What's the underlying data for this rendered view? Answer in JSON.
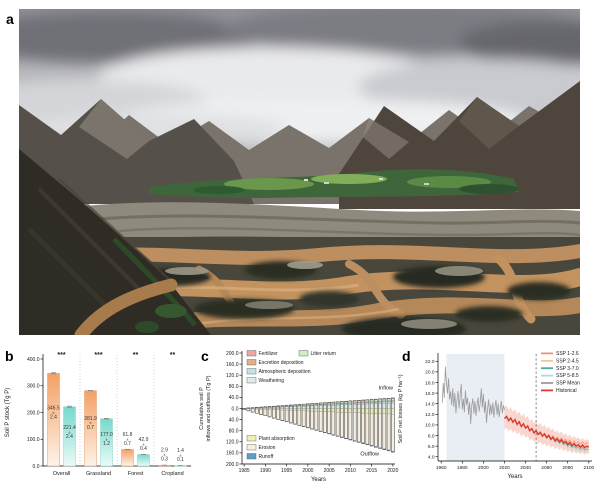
{
  "panels": {
    "a": "a",
    "b": "b",
    "c": "c",
    "d": "d"
  },
  "photo": {
    "description_icon": "braided-river-valley-photo"
  },
  "chart_data": [
    {
      "id": "b",
      "type": "bar",
      "ylabel": "Soil P stock (Tg P)",
      "ylim": [
        0,
        400
      ],
      "yticks": [
        0,
        100,
        200,
        300,
        400
      ],
      "categories": [
        "Overall",
        "Grassland",
        "Forest",
        "Cropland"
      ],
      "significance": [
        "***",
        "***",
        "**",
        "**"
      ],
      "pm": "±",
      "series": [
        {
          "name": "orange",
          "color_top": "#F4A064",
          "color_bottom": "#FEF3E8",
          "edge": "#DFA070",
          "values": [
            346.5,
            281.9,
            61.8,
            2.9
          ],
          "errors": [
            2.4,
            0.7,
            0.7,
            0.3
          ]
        },
        {
          "name": "teal",
          "color_top": "#76D8CA",
          "color_bottom": "#ECFBF8",
          "edge": "#8FD4C8",
          "values": [
            221.4,
            177.0,
            42.9,
            1.4
          ],
          "errors": [
            2.4,
            1.2,
            0.4,
            0.1
          ]
        }
      ]
    },
    {
      "id": "c",
      "type": "stacked-bar-cumulative",
      "ylabel_line1": "Cumulative soil P",
      "ylabel_line2": "inflows and outflows (Tg P)",
      "xlabel": "Years",
      "year_start": 1985,
      "year_end": 2020,
      "xticks": [
        1985,
        1990,
        1995,
        2000,
        2005,
        2010,
        2015,
        2020
      ],
      "yticks_signed": [
        200,
        160,
        120,
        80,
        40,
        0,
        -40,
        -80,
        -120,
        -160,
        -200
      ],
      "inflow_label": "Inflow",
      "outflow_label": "Outflow",
      "inflow_total_2020": 38,
      "outflow_total_2020": 157,
      "inflow_segments": [
        {
          "label": "Weathering",
          "color": "#DDEBE9",
          "frac": 0.52
        },
        {
          "label": "Atmospheric deposition",
          "color": "#BFE3E6",
          "frac": 0.16
        },
        {
          "label": "Excretion deposition",
          "color": "#E3B187",
          "frac": 0.09
        },
        {
          "label": "Litter return",
          "color": "#CDEDC5",
          "frac": 0.17
        },
        {
          "label": "Fertilizer",
          "color": "#F2A5A0",
          "frac": 0.06
        }
      ],
      "outflow_segments": [
        {
          "label": "Plant absorption",
          "color": "#EDEFB4",
          "frac": 0.13
        },
        {
          "label": "Erosion",
          "color": "#F6EEDF",
          "frac": 0.85
        },
        {
          "label": "Runoff",
          "color": "#5D9DC8",
          "frac": 0.02
        }
      ]
    },
    {
      "id": "d",
      "type": "line",
      "ylabel": "Soil P net losses (kg P ha⁻¹)",
      "xlabel": "Years",
      "yticks": [
        4,
        6,
        8,
        10,
        12,
        14,
        16,
        18,
        20,
        22
      ],
      "xticks": [
        1960,
        1980,
        2000,
        2020,
        2040,
        2060,
        2080,
        2100
      ],
      "shaded_region": [
        1965,
        2020
      ],
      "shade_color": "#E9EEF5",
      "dashed_line_x": 2050,
      "band_color": "rgba(242,150,126,0.38)",
      "band_halfwidth_start": 2.1,
      "band_halfwidth_end": 1.3,
      "ssp_scenarios": [
        {
          "label": "SSP 1-2.6",
          "color": "#F0907A",
          "end_offset": 0.7
        },
        {
          "label": "SSP 2-4.5",
          "color": "#F6C48E",
          "end_offset": 0.2
        },
        {
          "label": "SSP 3-7.0",
          "color": "#52A89E",
          "end_offset": -0.5
        },
        {
          "label": "SSP 5-8.5",
          "color": "#AEDBD6",
          "end_offset": -0.9
        }
      ],
      "mean_entry": {
        "label": "SSP Mean",
        "color": "#9C9C9C"
      },
      "historical_entry": {
        "label": "Historical",
        "color": "#D93A2B"
      },
      "gray_series": [
        [
          1961,
          14.2
        ],
        [
          1962,
          17.9
        ],
        [
          1963,
          15.1
        ],
        [
          1964,
          21.0
        ],
        [
          1965,
          17.7
        ],
        [
          1966,
          15.9
        ],
        [
          1967,
          18.8
        ],
        [
          1968,
          14.8
        ],
        [
          1969,
          16.3
        ],
        [
          1970,
          13.7
        ],
        [
          1971,
          16.9
        ],
        [
          1972,
          13.4
        ],
        [
          1973,
          16.0
        ],
        [
          1974,
          12.2
        ],
        [
          1975,
          14.7
        ],
        [
          1976,
          16.4
        ],
        [
          1977,
          13.1
        ],
        [
          1978,
          15.5
        ],
        [
          1979,
          17.7
        ],
        [
          1980,
          12.9
        ],
        [
          1981,
          14.9
        ],
        [
          1982,
          12.4
        ],
        [
          1983,
          16.5
        ],
        [
          1984,
          13.8
        ],
        [
          1985,
          15.1
        ],
        [
          1986,
          11.9
        ],
        [
          1987,
          14.3
        ],
        [
          1988,
          10.2
        ],
        [
          1989,
          13.6
        ],
        [
          1990,
          15.0
        ],
        [
          1991,
          12.1
        ],
        [
          1992,
          14.5
        ],
        [
          1993,
          11.7
        ],
        [
          1994,
          13.7
        ],
        [
          1995,
          15.2
        ],
        [
          1996,
          12.5
        ],
        [
          1997,
          14.1
        ],
        [
          1998,
          16.9
        ],
        [
          1999,
          13.3
        ],
        [
          2000,
          15.9
        ],
        [
          2001,
          12.3
        ],
        [
          2002,
          14.4
        ],
        [
          2003,
          10.4
        ],
        [
          2004,
          13.0
        ],
        [
          2005,
          14.8
        ],
        [
          2006,
          11.8
        ],
        [
          2007,
          13.9
        ],
        [
          2008,
          12.0
        ],
        [
          2009,
          14.2
        ],
        [
          2010,
          11.4
        ],
        [
          2011,
          13.4
        ],
        [
          2012,
          14.7
        ],
        [
          2013,
          11.9
        ],
        [
          2014,
          14.0
        ],
        [
          2015,
          11.5
        ],
        [
          2016,
          13.2
        ],
        [
          2017,
          14.5
        ],
        [
          2018,
          12.2
        ],
        [
          2019,
          13.7
        ],
        [
          2020,
          12.8
        ]
      ],
      "red_series": [
        [
          2020,
          11.2
        ],
        [
          2022,
          11.6
        ],
        [
          2024,
          10.8
        ],
        [
          2026,
          11.3
        ],
        [
          2028,
          10.5
        ],
        [
          2030,
          11.0
        ],
        [
          2032,
          10.1
        ],
        [
          2034,
          10.6
        ],
        [
          2036,
          9.7
        ],
        [
          2038,
          10.2
        ],
        [
          2040,
          9.4
        ],
        [
          2042,
          9.8
        ],
        [
          2044,
          8.9
        ],
        [
          2046,
          9.3
        ],
        [
          2048,
          8.5
        ],
        [
          2050,
          8.9
        ],
        [
          2052,
          8.2
        ],
        [
          2054,
          8.6
        ],
        [
          2056,
          7.9
        ],
        [
          2058,
          8.3
        ],
        [
          2060,
          7.6
        ],
        [
          2062,
          8.0
        ],
        [
          2064,
          7.3
        ],
        [
          2066,
          7.7
        ],
        [
          2068,
          7.0
        ],
        [
          2070,
          7.4
        ],
        [
          2072,
          6.8
        ],
        [
          2074,
          7.2
        ],
        [
          2076,
          6.6
        ],
        [
          2078,
          6.9
        ],
        [
          2080,
          6.3
        ],
        [
          2082,
          6.7
        ],
        [
          2084,
          6.1
        ],
        [
          2086,
          6.5
        ],
        [
          2088,
          6.0
        ],
        [
          2090,
          6.3
        ],
        [
          2092,
          5.8
        ],
        [
          2094,
          6.2
        ],
        [
          2096,
          5.7
        ],
        [
          2098,
          6.0
        ],
        [
          2100,
          5.8
        ]
      ]
    }
  ]
}
